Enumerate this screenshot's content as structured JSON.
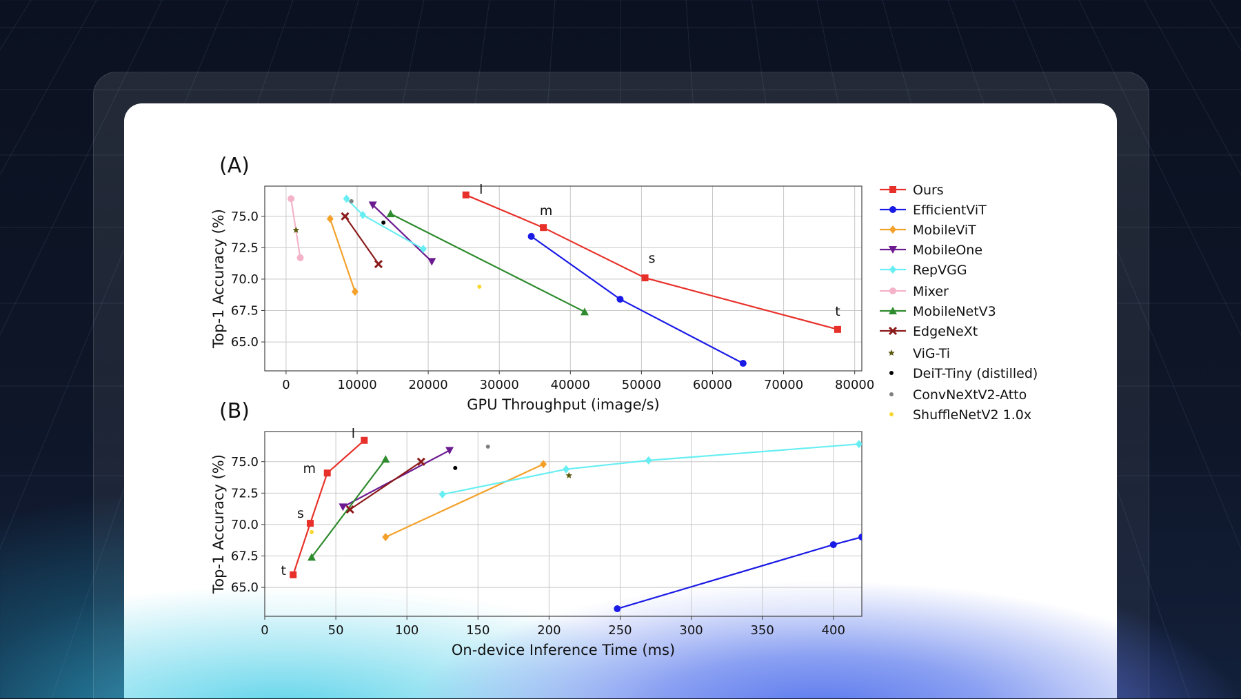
{
  "chart_data": [
    {
      "type": "line",
      "panel_label": "(A)",
      "xlabel": "GPU Throughput (image/s)",
      "ylabel": "Top-1 Accuracy (%)",
      "xlim": [
        -3000,
        81000
      ],
      "ylim": [
        62.7,
        77.4
      ],
      "xticks": [
        "0",
        "10000",
        "20000",
        "30000",
        "40000",
        "50000",
        "60000",
        "70000",
        "80000"
      ],
      "xtick_values": [
        0,
        10000,
        20000,
        30000,
        40000,
        50000,
        60000,
        70000,
        80000
      ],
      "yticks": [
        "65.0",
        "67.5",
        "70.0",
        "72.5",
        "75.0"
      ],
      "ytick_values": [
        65.0,
        67.5,
        70.0,
        72.5,
        75.0
      ],
      "grid": true,
      "series": [
        {
          "name": "Ours",
          "color": "#e8302a",
          "marker": "square",
          "points": [
            [
              25300,
              76.7
            ],
            [
              36200,
              74.1
            ],
            [
              50500,
              70.1
            ],
            [
              77600,
              66.0
            ]
          ],
          "point_labels": [
            "l",
            "m",
            "s",
            "t"
          ]
        },
        {
          "name": "EfficientViT",
          "color": "#1a1ae6",
          "marker": "circle",
          "points": [
            [
              34500,
              73.4
            ],
            [
              47000,
              68.4
            ],
            [
              64300,
              63.3
            ]
          ]
        },
        {
          "name": "MobileViT",
          "color": "#f4a12a",
          "marker": "diamond",
          "points": [
            [
              6200,
              74.8
            ],
            [
              9700,
              69.0
            ]
          ]
        },
        {
          "name": "MobileOne",
          "color": "#6c1a8f",
          "marker": "triangle-down",
          "points": [
            [
              12200,
              75.9
            ],
            [
              20500,
              71.4
            ]
          ]
        },
        {
          "name": "RepVGG",
          "color": "#66eef2",
          "marker": "diamond",
          "points": [
            [
              8500,
              76.4
            ],
            [
              10800,
              75.1
            ],
            [
              19300,
              72.4
            ]
          ]
        },
        {
          "name": "Mixer",
          "color": "#f4b3c8",
          "marker": "circle",
          "points": [
            [
              700,
              76.4
            ],
            [
              2000,
              71.7
            ]
          ]
        },
        {
          "name": "MobileNetV3",
          "color": "#2e8b2e",
          "marker": "triangle-up",
          "points": [
            [
              14700,
              75.2
            ],
            [
              42000,
              67.4
            ]
          ]
        },
        {
          "name": "EdgeNeXt",
          "color": "#8b1a1a",
          "marker": "x",
          "points": [
            [
              8300,
              75.0
            ],
            [
              13000,
              71.2
            ]
          ]
        },
        {
          "name": "ViG-Ti",
          "color": "#5a5a10",
          "marker": "star",
          "points": [
            [
              1400,
              73.9
            ]
          ]
        },
        {
          "name": "DeiT-Tiny (distilled)",
          "color": "#000000",
          "marker": "dot",
          "points": [
            [
              13700,
              74.5
            ]
          ]
        },
        {
          "name": "ConvNeXtV2-Atto",
          "color": "#7f7f7f",
          "marker": "dot",
          "points": [
            [
              9200,
              76.2
            ]
          ]
        },
        {
          "name": "ShuffleNetV2 1.0x",
          "color": "#f9d72e",
          "marker": "dot",
          "points": [
            [
              27200,
              69.4
            ]
          ]
        }
      ]
    },
    {
      "type": "line",
      "panel_label": "(B)",
      "xlabel": "On-device Inference Time (ms)",
      "ylabel": "Top-1 Accuracy (%)",
      "xlim": [
        0,
        420
      ],
      "ylim": [
        62.7,
        77.4
      ],
      "xticks": [
        "0",
        "50",
        "100",
        "150",
        "200",
        "250",
        "300",
        "350",
        "400"
      ],
      "xtick_values": [
        0,
        50,
        100,
        150,
        200,
        250,
        300,
        350,
        400
      ],
      "yticks": [
        "65.0",
        "67.5",
        "70.0",
        "72.5",
        "75.0"
      ],
      "ytick_values": [
        65.0,
        67.5,
        70.0,
        72.5,
        75.0
      ],
      "grid": true,
      "series": [
        {
          "name": "Ours",
          "color": "#e8302a",
          "marker": "square",
          "points": [
            [
              70,
              76.7
            ],
            [
              44,
              74.1
            ],
            [
              32,
              70.1
            ],
            [
              20,
              66.0
            ]
          ],
          "point_labels": [
            "l",
            "m",
            "s",
            "t"
          ]
        },
        {
          "name": "EfficientViT",
          "color": "#1a1ae6",
          "marker": "circle",
          "points": [
            [
              248,
              63.3
            ],
            [
              400,
              68.4
            ],
            [
              420,
              69.0
            ]
          ]
        },
        {
          "name": "MobileViT",
          "color": "#f4a12a",
          "marker": "diamond",
          "points": [
            [
              196,
              74.8
            ],
            [
              85,
              69.0
            ]
          ]
        },
        {
          "name": "MobileOne",
          "color": "#6c1a8f",
          "marker": "triangle-down",
          "points": [
            [
              130,
              75.9
            ],
            [
              55,
              71.4
            ]
          ]
        },
        {
          "name": "RepVGG",
          "color": "#66eef2",
          "marker": "diamond",
          "points": [
            [
              418,
              76.4
            ],
            [
              270,
              75.1
            ],
            [
              212,
              74.4
            ],
            [
              125,
              72.4
            ]
          ]
        },
        {
          "name": "MobileNetV3",
          "color": "#2e8b2e",
          "marker": "triangle-up",
          "points": [
            [
              85,
              75.2
            ],
            [
              33,
              67.4
            ]
          ]
        },
        {
          "name": "EdgeNeXt",
          "color": "#8b1a1a",
          "marker": "x",
          "points": [
            [
              110,
              75.0
            ],
            [
              60,
              71.2
            ]
          ]
        },
        {
          "name": "ViG-Ti",
          "color": "#5a5a10",
          "marker": "star",
          "points": [
            [
              214,
              73.9
            ]
          ]
        },
        {
          "name": "DeiT-Tiny (distilled)",
          "color": "#000000",
          "marker": "dot",
          "points": [
            [
              134,
              74.5
            ]
          ]
        },
        {
          "name": "ConvNeXtV2-Atto",
          "color": "#7f7f7f",
          "marker": "dot",
          "points": [
            [
              157,
              76.2
            ]
          ]
        },
        {
          "name": "ShuffleNetV2 1.0x",
          "color": "#f9d72e",
          "marker": "dot",
          "points": [
            [
              33,
              69.4
            ]
          ]
        }
      ]
    }
  ],
  "legend": {
    "placement": "right",
    "entries": [
      {
        "name": "Ours",
        "color": "#e8302a",
        "marker": "square",
        "style": "line"
      },
      {
        "name": "EfficientViT",
        "color": "#1a1ae6",
        "marker": "circle",
        "style": "line"
      },
      {
        "name": "MobileViT",
        "color": "#f4a12a",
        "marker": "diamond",
        "style": "line"
      },
      {
        "name": "MobileOne",
        "color": "#6c1a8f",
        "marker": "triangle-down",
        "style": "line"
      },
      {
        "name": "RepVGG",
        "color": "#66eef2",
        "marker": "diamond",
        "style": "line"
      },
      {
        "name": "Mixer",
        "color": "#f4b3c8",
        "marker": "circle",
        "style": "line"
      },
      {
        "name": "MobileNetV3",
        "color": "#2e8b2e",
        "marker": "triangle-up",
        "style": "line"
      },
      {
        "name": "EdgeNeXt",
        "color": "#8b1a1a",
        "marker": "x",
        "style": "line"
      },
      {
        "name": "ViG-Ti",
        "color": "#5a5a10",
        "marker": "star",
        "style": "point"
      },
      {
        "name": "DeiT-Tiny (distilled)",
        "color": "#000000",
        "marker": "dot",
        "style": "point"
      },
      {
        "name": "ConvNeXtV2-Atto",
        "color": "#7f7f7f",
        "marker": "dot",
        "style": "point"
      },
      {
        "name": "ShuffleNetV2 1.0x",
        "color": "#f9d72e",
        "marker": "dot",
        "style": "point"
      }
    ]
  }
}
